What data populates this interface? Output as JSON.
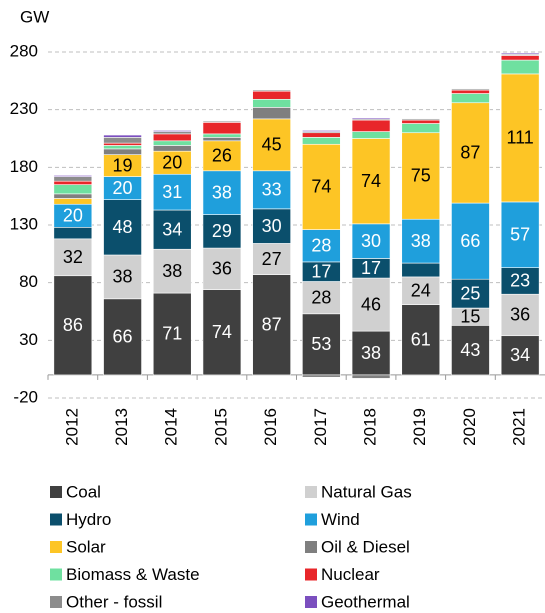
{
  "chart_data": {
    "type": "stacked_bar",
    "y_label": "GW",
    "categories": [
      "2012",
      "2013",
      "2014",
      "2015",
      "2016",
      "2017",
      "2018",
      "2019",
      "2020",
      "2021"
    ],
    "series": [
      {
        "name": "Coal",
        "color": "#404040",
        "values": [
          86,
          66,
          71,
          74,
          87,
          53,
          38,
          61,
          43,
          34
        ]
      },
      {
        "name": "Natural Gas",
        "color": "#d0d0d0",
        "values": [
          32,
          38,
          38,
          36,
          27,
          28,
          46,
          24,
          15,
          36
        ]
      },
      {
        "name": "Hydro",
        "color": "#0b4f6c",
        "values": [
          10,
          48,
          34,
          29,
          30,
          17,
          17,
          12,
          25,
          23
        ]
      },
      {
        "name": "Wind",
        "color": "#1f9fdc",
        "values": [
          20,
          20,
          31,
          38,
          33,
          28,
          30,
          38,
          66,
          57
        ]
      },
      {
        "name": "Solar",
        "color": "#fdc525",
        "values": [
          5,
          19,
          20,
          26,
          45,
          74,
          74,
          75,
          87,
          111
        ]
      },
      {
        "name": "Oil & Diesel",
        "color": "#7f7f7f",
        "values": [
          4,
          5,
          5,
          3,
          10,
          -2,
          -3,
          0,
          0,
          0
        ]
      },
      {
        "name": "Biomass & Waste",
        "color": "#6fe0a0",
        "values": [
          8,
          3,
          4,
          3,
          7,
          6,
          6,
          8,
          8,
          12
        ]
      },
      {
        "name": "Nuclear",
        "color": "#e8262a",
        "values": [
          3,
          2,
          6,
          10,
          7,
          4,
          10,
          3,
          3,
          4
        ]
      },
      {
        "name": "Other - fossil",
        "color": "#8c8c8c",
        "values": [
          4,
          5,
          2,
          1,
          1,
          1,
          1,
          1,
          1,
          1
        ]
      },
      {
        "name": "Geothermal",
        "color": "#7b4fbf",
        "values": [
          1,
          2,
          1,
          0,
          0,
          1,
          1,
          0,
          0,
          1
        ]
      }
    ],
    "ylim": [
      -20,
      280
    ],
    "yticks": [
      -20,
      30,
      80,
      130,
      180,
      230,
      280
    ],
    "grid": true
  }
}
